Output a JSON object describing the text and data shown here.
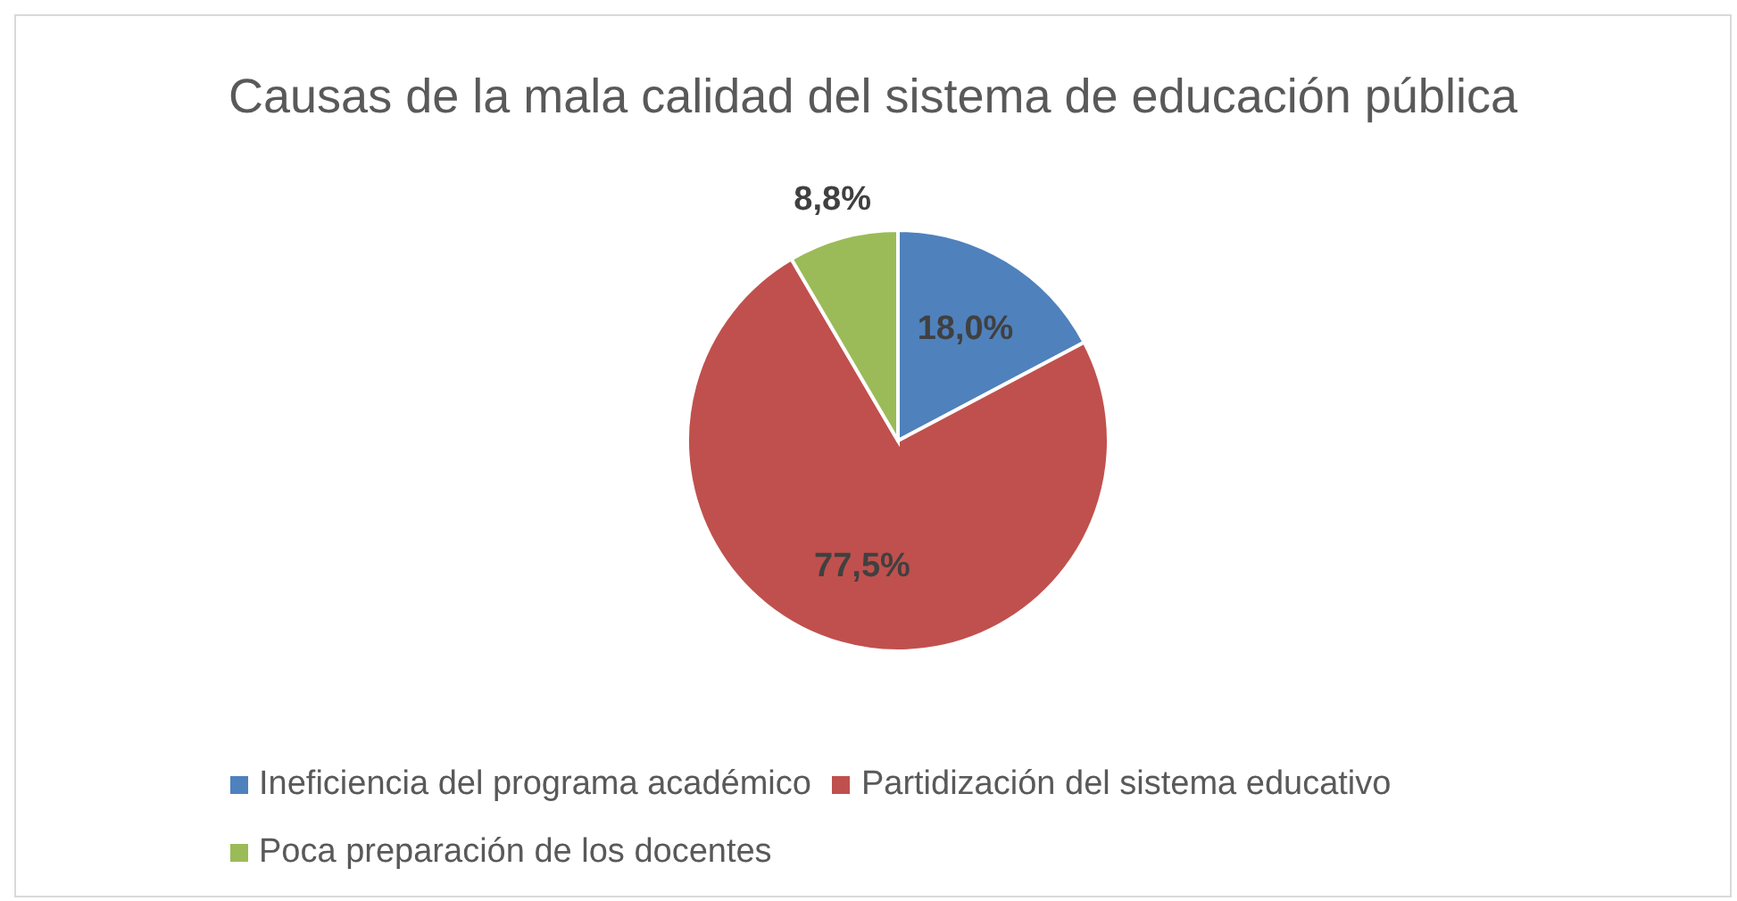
{
  "chart_data": {
    "type": "pie",
    "title": "Causas de la mala calidad del sistema de educación pública",
    "categories": [
      "Ineficiencia del programa académico",
      "Partidización del sistema educativo",
      "Poca preparación de los docentes"
    ],
    "values": [
      18.0,
      77.5,
      8.8
    ],
    "colors": [
      "#4f81bd",
      "#c0504d",
      "#9bbb59"
    ],
    "value_labels": [
      "18,0%",
      "77,5%",
      "8,8%"
    ],
    "legend": "bottom"
  }
}
